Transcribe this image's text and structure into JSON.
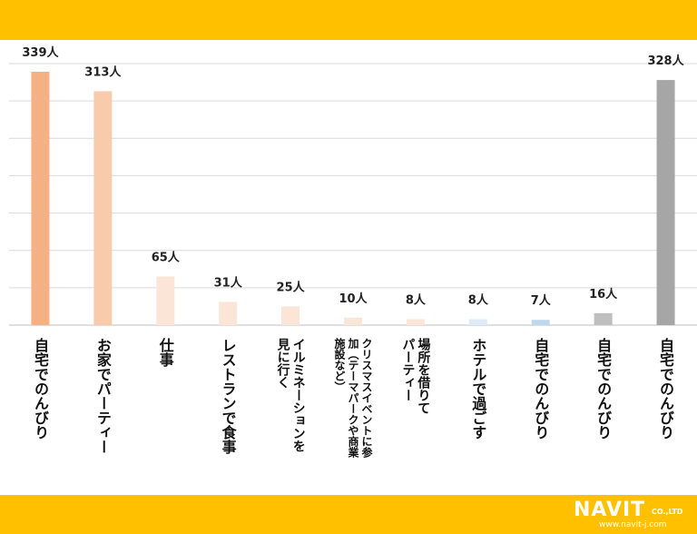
{
  "header": {},
  "footer": {
    "brand": "NAVIT",
    "brand_suffix": "CO.,LTD",
    "url": "www.navit-j.com"
  },
  "chart_data": {
    "type": "bar",
    "categories": [
      "自宅でのんびり",
      "お家でパーティー",
      "仕事",
      "レストランで食事",
      "イルミネーションを見に行く",
      "クリスマスイベントに参加（テーマパークや商業施設など）",
      "場所を借りてパーティー",
      "ホテルで過ごす",
      "自宅でのんびり",
      "自宅でのんびり",
      "自宅でのんびり"
    ],
    "category_lines": [
      [
        "自宅でのんびり"
      ],
      [
        "お家でパーティー"
      ],
      [
        "仕事"
      ],
      [
        "レストランで食事"
      ],
      [
        "イルミネーションを",
        "見に行く"
      ],
      [
        "クリスマスイベントに参",
        "加（テーマパークや商業",
        "施設など）"
      ],
      [
        "場所を借りて",
        "パーティー"
      ],
      [
        "ホテルで過ごす"
      ],
      [
        "自宅でのんびり"
      ],
      [
        "自宅でのんびり"
      ],
      [
        "自宅でのんびり"
      ]
    ],
    "values": [
      339,
      313,
      65,
      31,
      25,
      10,
      8,
      8,
      7,
      16,
      328
    ],
    "value_labels": [
      "339人",
      "313人",
      "65人",
      "31人",
      "25人",
      "10人",
      "8人",
      "8人",
      "7人",
      "16人",
      "328人"
    ],
    "colors": [
      "#F4B183",
      "#F8CBAD",
      "#FBE5D6",
      "#FBE5D6",
      "#FBE5D6",
      "#FBE5D6",
      "#FBE5D6",
      "#DEEBF7",
      "#BDD7EE",
      "#BFBFBF",
      "#A6A6A6"
    ],
    "ylim": [
      0,
      350
    ],
    "grid": true,
    "title": "",
    "xlabel": "",
    "ylabel": ""
  }
}
